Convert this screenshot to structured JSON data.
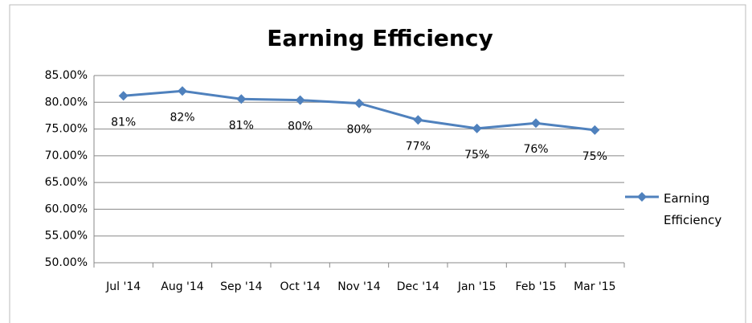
{
  "chart_data": {
    "type": "line",
    "title": "Earning Efficiency",
    "categories": [
      "Jul '14",
      "Aug '14",
      "Sep '14",
      "Oct '14",
      "Nov '14",
      "Dec '14",
      "Jan '15",
      "Feb '15",
      "Mar '15"
    ],
    "series": [
      {
        "name": "Earning Efficiency",
        "color": "#4f81bd",
        "values": [
          81.2,
          82.1,
          80.6,
          80.4,
          79.8,
          76.7,
          75.1,
          76.1,
          74.8
        ],
        "value_labels": [
          "81%",
          "82%",
          "81%",
          "80%",
          "80%",
          "77%",
          "75%",
          "76%",
          "75%"
        ]
      }
    ],
    "ylim": [
      50,
      85
    ],
    "yticks": [
      {
        "value": 50,
        "label": "50.00%"
      },
      {
        "value": 55,
        "label": "55.00%"
      },
      {
        "value": 60,
        "label": "60.00%"
      },
      {
        "value": 65,
        "label": "65.00%"
      },
      {
        "value": 70,
        "label": "70.00%"
      },
      {
        "value": 75,
        "label": "75.00%"
      },
      {
        "value": 80,
        "label": "80.00%"
      },
      {
        "value": 85,
        "label": "85.00%"
      }
    ],
    "grid": true,
    "legend": "right"
  }
}
